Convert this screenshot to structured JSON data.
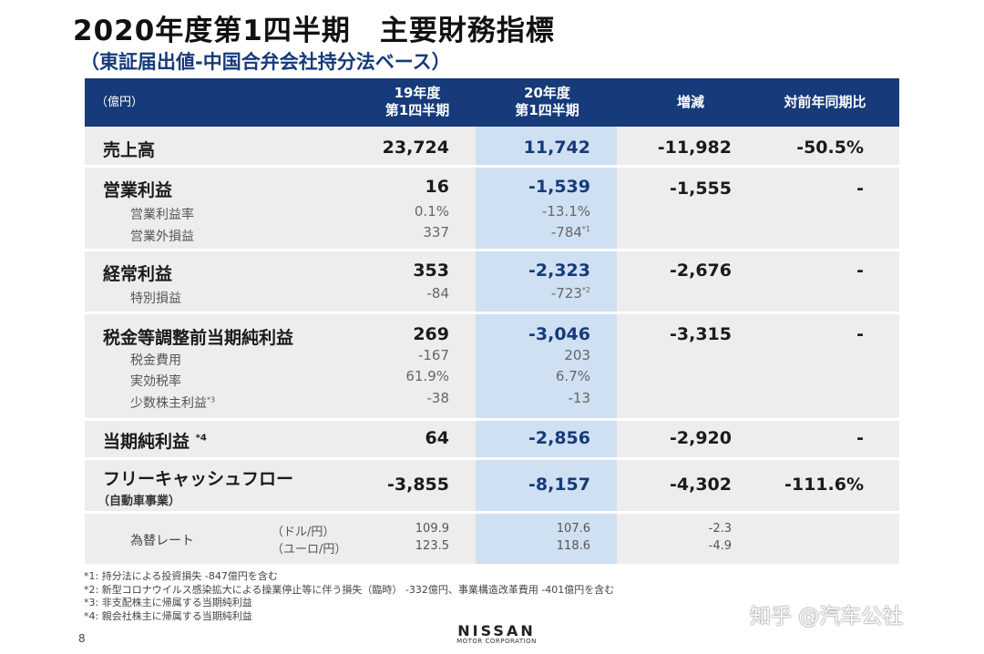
{
  "title": "2020年度第1四半期　主要財務指標",
  "subtitle": "（東証届出値-中国合弁会社持分法ベース）",
  "header": {
    "unit": "（億円）",
    "col1_line1": "19年度",
    "col1_line2": "第1四半期",
    "col2_line1": "20年度",
    "col2_line2": "第1四半期",
    "col3": "増減",
    "col4": "対前年同期比"
  },
  "rows": {
    "sales": {
      "label": "売上高",
      "v19": "23,724",
      "v20": "11,742",
      "diff": "-11,982",
      "ratio": "-50.5%"
    },
    "op": {
      "label": "営業利益",
      "v19": "16",
      "v20": "-1,539",
      "diff": "-1,555",
      "ratio": "-",
      "sub1_label": "営業利益率",
      "sub1_v19": "0.1%",
      "sub1_v20": "-13.1%",
      "sub2_label": "営業外損益",
      "sub2_v19": "337",
      "sub2_v20": "-784",
      "sub2_note": "*1"
    },
    "ordinary": {
      "label": "経常利益",
      "v19": "353",
      "v20": "-2,323",
      "diff": "-2,676",
      "ratio": "-",
      "sub1_label": "特別損益",
      "sub1_v19": "-84",
      "sub1_v20": "-723",
      "sub1_note": "*2"
    },
    "pretax": {
      "label": "税金等調整前当期純利益",
      "v19": "269",
      "v20": "-3,046",
      "diff": "-3,315",
      "ratio": "-",
      "sub1_label": "税金費用",
      "sub1_v19": "-167",
      "sub1_v20": "203",
      "sub2_label": "実効税率",
      "sub2_v19": "61.9%",
      "sub2_v20": "6.7%",
      "sub3_label": "少数株主利益",
      "sub3_note": "*3",
      "sub3_v19": "-38",
      "sub3_v20": "-13"
    },
    "net": {
      "label": "当期純利益",
      "note": "*4",
      "v19": "64",
      "v20": "-2,856",
      "diff": "-2,920",
      "ratio": "-"
    },
    "fcf": {
      "label": "フリーキャッシュフロー",
      "label_sub": "（自動車事業）",
      "v19": "-3,855",
      "v20": "-8,157",
      "diff": "-4,302",
      "ratio": "-111.6%"
    },
    "fx": {
      "label": "為替レート",
      "unit1": "（ドル/円）",
      "unit2": "（ユーロ/円）",
      "v19_1": "109.9",
      "v19_2": "123.5",
      "v20_1": "107.6",
      "v20_2": "118.6",
      "diff_1": "-2.3",
      "diff_2": "-4.9"
    }
  },
  "notes": [
    "*1: 持分法による投資損失 -847億円を含む",
    "*2: 新型コロナウイルス感染拡大による操業停止等に伴う損失（臨時） -332億円、事業構造改革費用 -401億円を含む",
    "*3: 非支配株主に帰属する当期純利益",
    "*4: 親会社株主に帰属する当期純利益"
  ],
  "page_number": "8",
  "logo": {
    "brand": "NISSAN",
    "corp": "MOTOR CORPORATION"
  },
  "watermark": "知乎 @汽车公社"
}
